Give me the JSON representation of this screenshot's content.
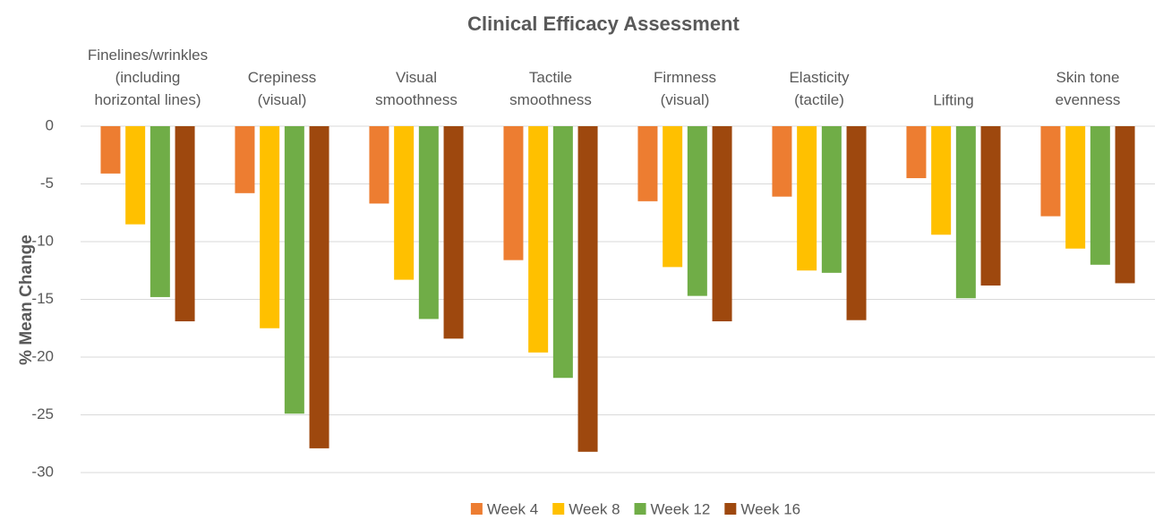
{
  "chart_data": {
    "type": "bar",
    "title": "Clinical Efficacy Assessment",
    "y_label": "% Mean Change",
    "categories": [
      "Finelines/wrinkles\n(including\nhorizontal lines)",
      "Crepiness\n(visual)",
      "Visual\nsmoothness",
      "Tactile\nsmoothness",
      "Firmness\n(visual)",
      "Elasticity\n(tactile)",
      "Lifting",
      "Skin tone\nevenness"
    ],
    "series": [
      {
        "name": "Week 4",
        "color": "#ED7D31",
        "values": [
          -4.1,
          -5.8,
          -6.7,
          -11.6,
          -6.5,
          -6.1,
          -4.5,
          -7.8
        ]
      },
      {
        "name": "Week 8",
        "color": "#FFC000",
        "values": [
          -8.5,
          -17.5,
          -13.3,
          -19.6,
          -12.2,
          -12.5,
          -9.4,
          -10.6
        ]
      },
      {
        "name": "Week 12",
        "color": "#70AD47",
        "values": [
          -14.8,
          -24.9,
          -16.7,
          -21.8,
          -14.7,
          -12.7,
          -14.9,
          -12.0
        ]
      },
      {
        "name": "Week 16",
        "color": "#9E480E",
        "values": [
          -16.9,
          -27.9,
          -18.4,
          -28.2,
          -16.9,
          -16.8,
          -13.8,
          -13.6
        ]
      }
    ],
    "ylim": [
      -30,
      0
    ],
    "yticks": [
      0,
      -5,
      -10,
      -15,
      -20,
      -25,
      -30
    ],
    "grid": true,
    "legend": "bottom"
  }
}
